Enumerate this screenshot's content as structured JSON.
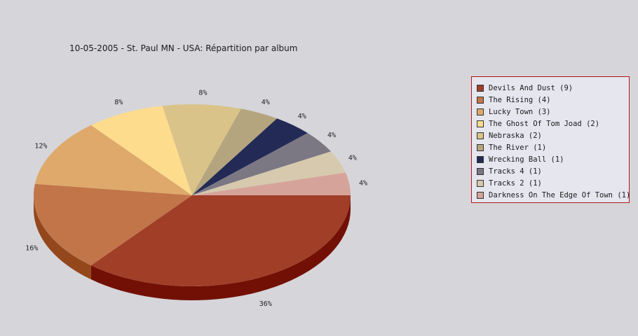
{
  "chart_data": {
    "type": "pie",
    "title": "10-05-2005 - St. Paul MN - USA:  Répartition par album",
    "slices": [
      {
        "label": "Devils And Dust (9)",
        "value": 9,
        "percent_label": "36%",
        "color": "#a03e28",
        "side_color": "#721005"
      },
      {
        "label": "The Rising (4)",
        "value": 4,
        "percent_label": "16%",
        "color": "#c27549",
        "side_color": "#93471b"
      },
      {
        "label": "Lucky Town (3)",
        "value": 3,
        "percent_label": "12%",
        "color": "#dfa96c",
        "side_color": "#b07b3e"
      },
      {
        "label": "The Ghost Of Tom Joad (2)",
        "value": 2,
        "percent_label": "8%",
        "color": "#fedc8e",
        "side_color": "#cfae60"
      },
      {
        "label": "Nebraska (2)",
        "value": 2,
        "percent_label": "8%",
        "color": "#dac388",
        "side_color": "#ab955a"
      },
      {
        "label": "The River (1)",
        "value": 1,
        "percent_label": "4%",
        "color": "#b5a57f",
        "side_color": "#877751"
      },
      {
        "label": "Wrecking Ball (1)",
        "value": 1,
        "percent_label": "4%",
        "color": "#222a55",
        "side_color": "#101530"
      },
      {
        "label": "Tracks 4 (1)",
        "value": 1,
        "percent_label": "4%",
        "color": "#7b7883",
        "side_color": "#4f4c57"
      },
      {
        "label": "Tracks 2 (1)",
        "value": 1,
        "percent_label": "4%",
        "color": "#d6c9ae",
        "side_color": "#a89b80"
      },
      {
        "label": "Darkness On The Edge Of Town (1)",
        "value": 1,
        "percent_label": "4%",
        "color": "#d6a39a",
        "side_color": "#a8756c"
      }
    ],
    "legend_position": "right"
  }
}
